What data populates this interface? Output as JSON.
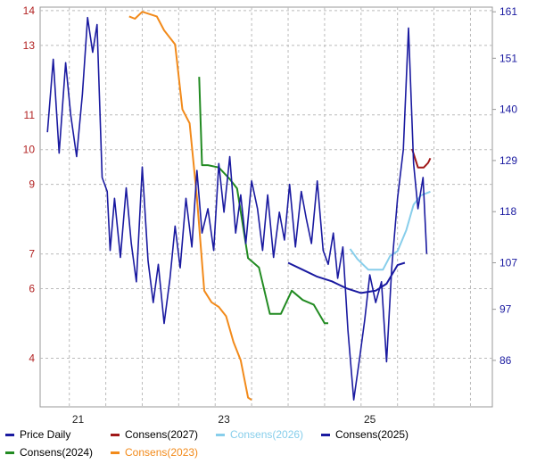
{
  "chart_data": {
    "type": "line",
    "x_ticks": [
      "21",
      "23",
      "25"
    ],
    "y_left_ticks": [
      "4",
      "6",
      "7",
      "9",
      "10",
      "11",
      "13",
      "14"
    ],
    "y_right_ticks": [
      "86",
      "97",
      "107",
      "118",
      "129",
      "140",
      "151",
      "161"
    ],
    "y_left_range": [
      2.6,
      14.1
    ],
    "y_right_range": [
      76,
      162
    ],
    "x_range": [
      2020.6,
      2026.8
    ],
    "grid": true,
    "legend_position": "bottom",
    "series": [
      {
        "name": "Price Daily",
        "axis": "left",
        "color": "#1a1aa0",
        "x": [
          2020.7,
          2020.78,
          2020.86,
          2020.95,
          2021.02,
          2021.1,
          2021.18,
          2021.25,
          2021.32,
          2021.38,
          2021.45,
          2021.52,
          2021.56,
          2021.62,
          2021.7,
          2021.78,
          2021.85,
          2021.92,
          2022.0,
          2022.08,
          2022.15,
          2022.22,
          2022.3,
          2022.38,
          2022.45,
          2022.52,
          2022.6,
          2022.68,
          2022.75,
          2022.82,
          2022.9,
          2022.98,
          2023.05,
          2023.12,
          2023.2,
          2023.28,
          2023.35,
          2023.42,
          2023.5,
          2023.58,
          2023.65,
          2023.72,
          2023.8,
          2023.88,
          2023.95,
          2024.02,
          2024.1,
          2024.18,
          2024.25,
          2024.32,
          2024.4,
          2024.48,
          2024.55,
          2024.62,
          2024.68,
          2024.75,
          2024.82,
          2024.9,
          2024.98,
          2025.05,
          2025.12,
          2025.2,
          2025.28,
          2025.35,
          2025.42,
          2025.5,
          2025.58,
          2025.65,
          2025.72,
          2025.78,
          2025.85,
          2025.9
        ],
        "y": [
          10.5,
          12.6,
          9.9,
          12.5,
          11.0,
          9.8,
          11.6,
          13.8,
          12.8,
          13.6,
          9.2,
          8.8,
          7.1,
          8.6,
          6.9,
          8.9,
          7.3,
          6.2,
          9.5,
          6.8,
          5.6,
          6.7,
          5.0,
          6.3,
          7.8,
          6.6,
          8.6,
          7.2,
          9.4,
          7.6,
          8.3,
          7.1,
          9.6,
          8.2,
          9.8,
          7.6,
          8.7,
          7.3,
          9.1,
          8.3,
          7.1,
          8.7,
          6.9,
          8.2,
          7.4,
          9.0,
          7.2,
          8.8,
          8.0,
          7.3,
          9.1,
          7.1,
          6.7,
          7.6,
          6.3,
          7.2,
          4.8,
          2.8,
          4.0,
          5.1,
          6.4,
          5.6,
          6.2,
          3.9,
          6.6,
          8.6,
          10.0,
          13.5,
          9.6,
          8.3,
          9.2,
          7.0
        ]
      },
      {
        "name": "Consens(2027)",
        "axis": "right",
        "color": "#a01818",
        "x": [
          2025.7,
          2025.78,
          2025.86,
          2025.92,
          2025.95
        ],
        "y": [
          131.5,
          127.5,
          127.5,
          128.5,
          129.5
        ]
      },
      {
        "name": "Consens(2026)",
        "axis": "right",
        "color": "#87ceeb",
        "x": [
          2024.85,
          2024.95,
          2025.1,
          2025.3,
          2025.4,
          2025.5,
          2025.62,
          2025.72,
          2025.82,
          2025.95
        ],
        "y": [
          110.0,
          107.8,
          105.5,
          105.5,
          108.5,
          109.5,
          114.0,
          119.5,
          121.5,
          122.3
        ]
      },
      {
        "name": "Consens(2025)",
        "axis": "right",
        "color": "#1a1aa0",
        "x": [
          2024.0,
          2024.2,
          2024.4,
          2024.6,
          2024.8,
          2025.0,
          2025.2,
          2025.35,
          2025.5,
          2025.6
        ],
        "y": [
          107.0,
          105.5,
          104.0,
          103.0,
          101.5,
          100.5,
          101.0,
          102.5,
          106.5,
          107.0
        ]
      },
      {
        "name": "Consens(2024)",
        "axis": "right",
        "color": "#228b22",
        "x": [
          2022.78,
          2022.82,
          2022.9,
          2023.05,
          2023.2,
          2023.3,
          2023.45,
          2023.6,
          2023.75,
          2023.9,
          2024.05,
          2024.2,
          2024.35,
          2024.5,
          2024.55
        ],
        "y": [
          147.0,
          128.0,
          128.0,
          127.5,
          125.0,
          123.0,
          108.0,
          106.0,
          96.0,
          96.0,
          101.0,
          99.0,
          98.0,
          94.0,
          94.0
        ]
      },
      {
        "name": "Consens(2023)",
        "axis": "right",
        "color": "#f28a1a",
        "x": [
          2021.82,
          2021.9,
          2022.0,
          2022.1,
          2022.2,
          2022.3,
          2022.45,
          2022.55,
          2022.65,
          2022.75,
          2022.85,
          2022.95,
          2023.05,
          2023.15,
          2023.25,
          2023.35,
          2023.45,
          2023.5
        ],
        "y": [
          160.0,
          159.5,
          161.0,
          160.5,
          160.0,
          157.0,
          154.0,
          140.0,
          137.0,
          121.0,
          101.0,
          98.5,
          97.5,
          95.5,
          90.0,
          86.0,
          78.0,
          77.5
        ]
      }
    ]
  }
}
